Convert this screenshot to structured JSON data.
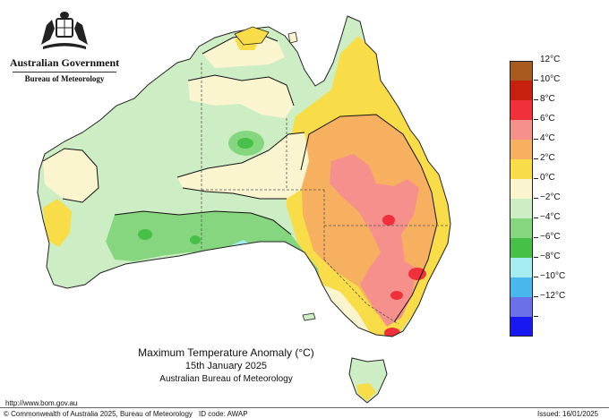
{
  "header": {
    "government": "Australian Government",
    "bureau": "Bureau of Meteorology"
  },
  "map": {
    "title": "Maximum Temperature Anomaly (°C)",
    "date": "15th January 2025",
    "source": "Australian Bureau of Meteorology"
  },
  "legend": {
    "items": [
      {
        "label": "12°C",
        "color": "#a85a20"
      },
      {
        "label": "10°C",
        "color": "#c8200f"
      },
      {
        "label": "8°C",
        "color": "#f0303a"
      },
      {
        "label": "6°C",
        "color": "#f5908c"
      },
      {
        "label": "4°C",
        "color": "#f6b060"
      },
      {
        "label": "2°C",
        "color": "#f8dc48"
      },
      {
        "label": "0°C",
        "color": "#fbf5cf"
      },
      {
        "label": "−2°C",
        "color": "#cdeec4"
      },
      {
        "label": "−4°C",
        "color": "#85d67e"
      },
      {
        "label": "−6°C",
        "color": "#46c046"
      },
      {
        "label": "−8°C",
        "color": "#a4ecf2"
      },
      {
        "label": "−10°C",
        "color": "#48b8ec"
      },
      {
        "label": "−12°C",
        "color": "#6a70e8"
      },
      {
        "label": "",
        "color": "#1818f0"
      }
    ]
  },
  "footer": {
    "url": "http://www.bom.gov.au",
    "copyright": "© Commonwealth of Australia 2025, Bureau of Meteorology",
    "id_code": "ID code: AWAP",
    "issued": "Issued: 16/01/2025"
  }
}
